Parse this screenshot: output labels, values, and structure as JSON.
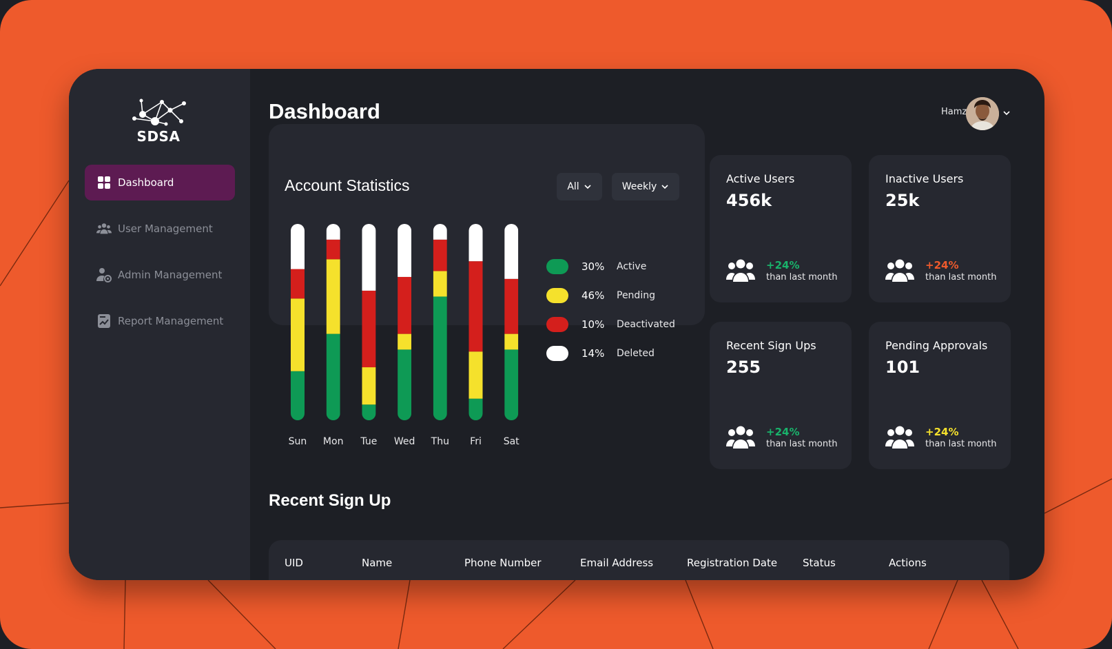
{
  "brand": {
    "name": "SDSA"
  },
  "sidebar": {
    "items": [
      {
        "label": "Dashboard",
        "icon": "grid-icon",
        "active": true
      },
      {
        "label": "User Management",
        "icon": "users-icon",
        "active": false
      },
      {
        "label": "Admin Management",
        "icon": "admin-gear-icon",
        "active": false
      },
      {
        "label": "Report Management",
        "icon": "report-icon",
        "active": false
      }
    ]
  },
  "header": {
    "title": "Dashboard",
    "user_name": "Hamza"
  },
  "account_stats": {
    "title": "Account Statistics",
    "filter_all": "All",
    "filter_period": "Weekly",
    "legend": [
      {
        "pct": "30%",
        "label": "Active",
        "color": "#0e9a55"
      },
      {
        "pct": "46%",
        "label": "Pending",
        "color": "#f5e12c"
      },
      {
        "pct": "10%",
        "label": "Deactivated",
        "color": "#d41f1c"
      },
      {
        "pct": "14%",
        "label": "Deleted",
        "color": "#ffffff"
      }
    ]
  },
  "chart_data": {
    "type": "bar",
    "stacked": true,
    "orientation": "vertical",
    "categories": [
      "Sun",
      "Mon",
      "Tue",
      "Wed",
      "Thu",
      "Fri",
      "Sat"
    ],
    "series": [
      {
        "name": "Active",
        "color": "#0e9a55",
        "values": [
          25,
          44,
          8,
          36,
          63,
          11,
          36
        ]
      },
      {
        "name": "Pending",
        "color": "#f5e12c",
        "values": [
          37,
          38,
          19,
          8,
          13,
          24,
          8
        ]
      },
      {
        "name": "Deactivated",
        "color": "#d41f1c",
        "values": [
          15,
          10,
          39,
          29,
          16,
          46,
          28
        ]
      },
      {
        "name": "Deleted",
        "color": "#ffffff",
        "values": [
          23,
          8,
          34,
          27,
          8,
          19,
          28
        ]
      }
    ],
    "ylim": [
      0,
      100
    ],
    "grid": false,
    "legend_position": "right"
  },
  "kpis": [
    {
      "title": "Active Users",
      "value": "456k",
      "change": "+24%",
      "change_color": "#19b36b",
      "sub": "than last month"
    },
    {
      "title": "Inactive Users",
      "value": "25k",
      "change": "+24%",
      "change_color": "#ee5a2c",
      "sub": "than last month"
    },
    {
      "title": "Recent Sign Ups",
      "value": "255",
      "change": "+24%",
      "change_color": "#19b36b",
      "sub": "than last month"
    },
    {
      "title": "Pending Approvals",
      "value": "101",
      "change": "+24%",
      "change_color": "#f5e12c",
      "sub": "than last month"
    }
  ],
  "recent_signups": {
    "title": "Recent Sign Up",
    "columns": [
      "UID",
      "Name",
      "Phone Number",
      "Email Address",
      "Registration Date",
      "Status",
      "Actions"
    ]
  }
}
